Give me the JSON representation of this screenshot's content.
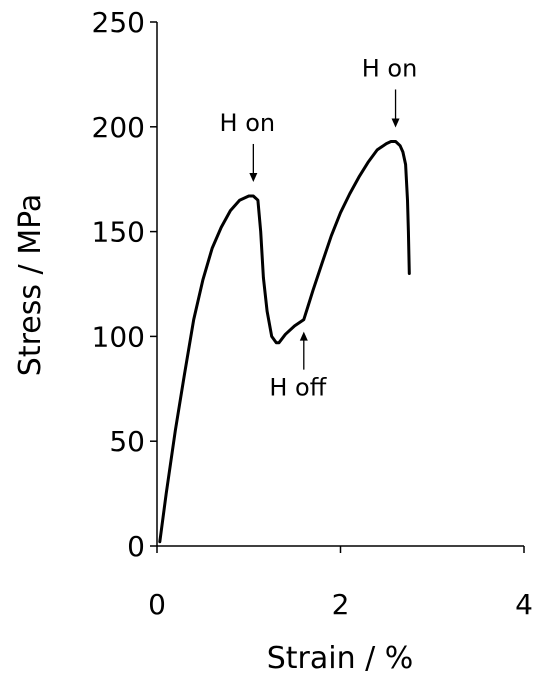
{
  "chart_data": {
    "type": "line",
    "xlabel": "Strain / %",
    "ylabel": "Stress / MPa",
    "xlim": [
      0,
      4
    ],
    "ylim": [
      0,
      250
    ],
    "xticks": [
      "0",
      "2",
      "4"
    ],
    "yticks": [
      "0",
      "50",
      "100",
      "150",
      "200",
      "250"
    ],
    "grid": false,
    "series": [
      {
        "x": [
          0.03,
          0.1,
          0.2,
          0.3,
          0.4,
          0.5,
          0.6,
          0.7,
          0.8,
          0.9,
          1.0,
          1.05,
          1.1,
          1.13,
          1.16,
          1.2,
          1.25,
          1.3,
          1.33,
          1.4,
          1.5,
          1.6,
          1.65,
          1.7,
          1.8,
          1.9,
          2.0,
          2.1,
          2.2,
          2.3,
          2.4,
          2.5,
          2.55,
          2.6,
          2.65,
          2.68,
          2.71,
          2.73,
          2.74,
          2.75
        ],
        "y": [
          2,
          25,
          55,
          82,
          108,
          127,
          142,
          152,
          160,
          165,
          167,
          167,
          165,
          150,
          128,
          112,
          100,
          97,
          97,
          101,
          105,
          108,
          115,
          122,
          135,
          148,
          159,
          168,
          176,
          183,
          189,
          192,
          193,
          193,
          191,
          188,
          182,
          165,
          150,
          130
        ]
      }
    ],
    "annotations": [
      {
        "text": "H on",
        "x": 1.05,
        "y": 167,
        "position": "above"
      },
      {
        "text": "H off",
        "x": 1.6,
        "y": 108,
        "position": "below"
      },
      {
        "text": "H on",
        "x": 2.6,
        "y": 193,
        "position": "above"
      }
    ]
  }
}
